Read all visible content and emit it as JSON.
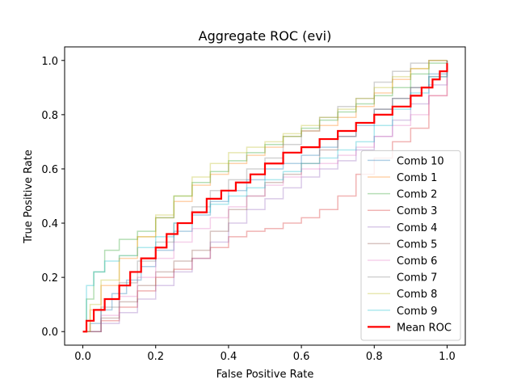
{
  "chart_data": {
    "type": "line",
    "title": "Aggregate ROC (evi)",
    "xlabel": "False Positive Rate",
    "ylabel": "True Positive Rate",
    "xlim": [
      -0.05,
      1.05
    ],
    "ylim": [
      -0.05,
      1.05
    ],
    "xticks": [
      {
        "v": 0.0,
        "label": "0.0"
      },
      {
        "v": 0.2,
        "label": "0.2"
      },
      {
        "v": 0.4,
        "label": "0.4"
      },
      {
        "v": 0.6,
        "label": "0.6"
      },
      {
        "v": 0.8,
        "label": "0.8"
      },
      {
        "v": 1.0,
        "label": "1.0"
      }
    ],
    "yticks": [
      {
        "v": 0.0,
        "label": "0.0"
      },
      {
        "v": 0.2,
        "label": "0.2"
      },
      {
        "v": 0.4,
        "label": "0.4"
      },
      {
        "v": 0.6,
        "label": "0.6"
      },
      {
        "v": 0.8,
        "label": "0.8"
      },
      {
        "v": 1.0,
        "label": "1.0"
      }
    ],
    "grid": false,
    "legend_position": "lower right",
    "series": [
      {
        "name": "Comb 10",
        "color": "#1f77b4",
        "alpha": 0.35,
        "width": 1.5,
        "x": [
          0.0,
          0.02,
          0.05,
          0.08,
          0.12,
          0.16,
          0.2,
          0.25,
          0.3,
          0.35,
          0.4,
          0.45,
          0.5,
          0.55,
          0.6,
          0.65,
          0.7,
          0.75,
          0.8,
          0.85,
          0.9,
          0.95,
          1.0
        ],
        "y": [
          0.0,
          0.03,
          0.08,
          0.14,
          0.19,
          0.24,
          0.3,
          0.37,
          0.43,
          0.48,
          0.52,
          0.56,
          0.6,
          0.62,
          0.65,
          0.68,
          0.72,
          0.76,
          0.82,
          0.86,
          0.9,
          0.95,
          1.0
        ]
      },
      {
        "name": "Comb 1",
        "color": "#ff7f0e",
        "alpha": 0.35,
        "width": 1.5,
        "x": [
          0.0,
          0.02,
          0.05,
          0.1,
          0.15,
          0.2,
          0.25,
          0.3,
          0.35,
          0.4,
          0.45,
          0.5,
          0.55,
          0.6,
          0.65,
          0.7,
          0.75,
          0.8,
          0.85,
          0.9,
          0.95,
          1.0
        ],
        "y": [
          0.0,
          0.08,
          0.17,
          0.27,
          0.35,
          0.42,
          0.48,
          0.54,
          0.58,
          0.62,
          0.65,
          0.68,
          0.72,
          0.74,
          0.76,
          0.79,
          0.83,
          0.88,
          0.93,
          0.97,
          1.0,
          1.0
        ]
      },
      {
        "name": "Comb 2",
        "color": "#2ca02c",
        "alpha": 0.35,
        "width": 1.5,
        "x": [
          0.0,
          0.01,
          0.03,
          0.06,
          0.1,
          0.15,
          0.2,
          0.25,
          0.3,
          0.35,
          0.4,
          0.45,
          0.5,
          0.55,
          0.6,
          0.65,
          0.7,
          0.75,
          0.8,
          0.85,
          0.9,
          0.95,
          1.0
        ],
        "y": [
          0.0,
          0.12,
          0.22,
          0.3,
          0.34,
          0.37,
          0.42,
          0.5,
          0.55,
          0.59,
          0.63,
          0.66,
          0.69,
          0.72,
          0.75,
          0.78,
          0.81,
          0.84,
          0.87,
          0.9,
          0.95,
          0.99,
          1.0
        ]
      },
      {
        "name": "Comb 3",
        "color": "#d62728",
        "alpha": 0.35,
        "width": 1.5,
        "x": [
          0.0,
          0.05,
          0.1,
          0.15,
          0.2,
          0.25,
          0.3,
          0.35,
          0.4,
          0.45,
          0.5,
          0.55,
          0.6,
          0.65,
          0.7,
          0.75,
          0.8,
          0.85,
          0.9,
          0.95,
          1.0
        ],
        "y": [
          0.0,
          0.04,
          0.09,
          0.15,
          0.2,
          0.23,
          0.27,
          0.31,
          0.35,
          0.37,
          0.38,
          0.4,
          0.42,
          0.45,
          0.5,
          0.58,
          0.64,
          0.7,
          0.75,
          0.87,
          1.0
        ]
      },
      {
        "name": "Comb 4",
        "color": "#9467bd",
        "alpha": 0.35,
        "width": 1.5,
        "x": [
          0.0,
          0.05,
          0.1,
          0.15,
          0.2,
          0.25,
          0.3,
          0.35,
          0.4,
          0.45,
          0.5,
          0.55,
          0.6,
          0.65,
          0.7,
          0.75,
          0.8,
          0.85,
          0.9,
          0.95,
          1.0
        ],
        "y": [
          0.0,
          0.03,
          0.07,
          0.12,
          0.17,
          0.22,
          0.27,
          0.33,
          0.4,
          0.45,
          0.49,
          0.53,
          0.57,
          0.6,
          0.63,
          0.67,
          0.72,
          0.78,
          0.84,
          0.91,
          0.95
        ]
      },
      {
        "name": "Comb 5",
        "color": "#8c564b",
        "alpha": 0.35,
        "width": 1.5,
        "x": [
          0.0,
          0.05,
          0.1,
          0.15,
          0.2,
          0.25,
          0.3,
          0.35,
          0.4,
          0.45,
          0.5,
          0.55,
          0.6,
          0.65,
          0.7,
          0.75,
          0.8,
          0.85,
          0.9,
          0.95,
          1.0
        ],
        "y": [
          0.0,
          0.05,
          0.11,
          0.17,
          0.22,
          0.26,
          0.3,
          0.37,
          0.45,
          0.5,
          0.55,
          0.58,
          0.62,
          0.67,
          0.72,
          0.77,
          0.82,
          0.86,
          0.9,
          0.94,
          1.0
        ]
      },
      {
        "name": "Comb 6",
        "color": "#e377c2",
        "alpha": 0.35,
        "width": 1.5,
        "x": [
          0.0,
          0.05,
          0.1,
          0.15,
          0.2,
          0.25,
          0.3,
          0.35,
          0.4,
          0.45,
          0.5,
          0.55,
          0.6,
          0.65,
          0.7,
          0.75,
          0.8,
          0.85,
          0.9,
          0.95,
          1.0
        ],
        "y": [
          0.0,
          0.06,
          0.13,
          0.2,
          0.27,
          0.33,
          0.38,
          0.42,
          0.46,
          0.5,
          0.54,
          0.57,
          0.6,
          0.62,
          0.65,
          0.68,
          0.72,
          0.76,
          0.8,
          0.87,
          0.93
        ]
      },
      {
        "name": "Comb 7",
        "color": "#7f7f7f",
        "alpha": 0.35,
        "width": 1.5,
        "x": [
          0.0,
          0.05,
          0.1,
          0.15,
          0.2,
          0.25,
          0.3,
          0.35,
          0.4,
          0.45,
          0.5,
          0.55,
          0.6,
          0.65,
          0.7,
          0.75,
          0.8,
          0.85,
          0.9,
          0.95,
          1.0
        ],
        "y": [
          0.0,
          0.09,
          0.18,
          0.26,
          0.33,
          0.4,
          0.46,
          0.52,
          0.56,
          0.6,
          0.64,
          0.69,
          0.74,
          0.79,
          0.83,
          0.86,
          0.92,
          0.96,
          0.99,
          1.0,
          1.0
        ]
      },
      {
        "name": "Comb 8",
        "color": "#bcbd22",
        "alpha": 0.35,
        "width": 1.5,
        "x": [
          0.0,
          0.02,
          0.05,
          0.1,
          0.15,
          0.2,
          0.25,
          0.3,
          0.35,
          0.4,
          0.45,
          0.5,
          0.55,
          0.6,
          0.65,
          0.7,
          0.75,
          0.8,
          0.85,
          0.9,
          0.95,
          1.0
        ],
        "y": [
          0.0,
          0.1,
          0.19,
          0.28,
          0.35,
          0.43,
          0.5,
          0.57,
          0.62,
          0.66,
          0.68,
          0.7,
          0.73,
          0.76,
          0.79,
          0.82,
          0.86,
          0.9,
          0.94,
          0.97,
          1.0,
          1.0
        ]
      },
      {
        "name": "Comb 9",
        "color": "#17becf",
        "alpha": 0.35,
        "width": 1.5,
        "x": [
          0.0,
          0.01,
          0.03,
          0.06,
          0.1,
          0.15,
          0.2,
          0.25,
          0.3,
          0.35,
          0.4,
          0.45,
          0.5,
          0.55,
          0.6,
          0.65,
          0.7,
          0.75,
          0.8,
          0.85,
          0.9,
          0.95,
          1.0
        ],
        "y": [
          0.0,
          0.17,
          0.22,
          0.26,
          0.28,
          0.31,
          0.35,
          0.4,
          0.44,
          0.47,
          0.5,
          0.53,
          0.56,
          0.59,
          0.62,
          0.64,
          0.67,
          0.7,
          0.76,
          0.82,
          0.88,
          0.94,
          0.99
        ]
      },
      {
        "name": "Mean ROC",
        "color": "#ff0000",
        "alpha": 1,
        "width": 2.2,
        "x": [
          0.0,
          0.01,
          0.03,
          0.06,
          0.1,
          0.13,
          0.16,
          0.2,
          0.23,
          0.26,
          0.3,
          0.34,
          0.38,
          0.42,
          0.46,
          0.5,
          0.55,
          0.6,
          0.65,
          0.7,
          0.75,
          0.8,
          0.85,
          0.9,
          0.93,
          0.96,
          0.98,
          1.0
        ],
        "y": [
          0.0,
          0.04,
          0.08,
          0.12,
          0.17,
          0.22,
          0.27,
          0.31,
          0.36,
          0.4,
          0.44,
          0.49,
          0.52,
          0.55,
          0.58,
          0.62,
          0.66,
          0.68,
          0.71,
          0.74,
          0.77,
          0.8,
          0.83,
          0.87,
          0.9,
          0.93,
          0.96,
          0.99
        ]
      }
    ]
  }
}
